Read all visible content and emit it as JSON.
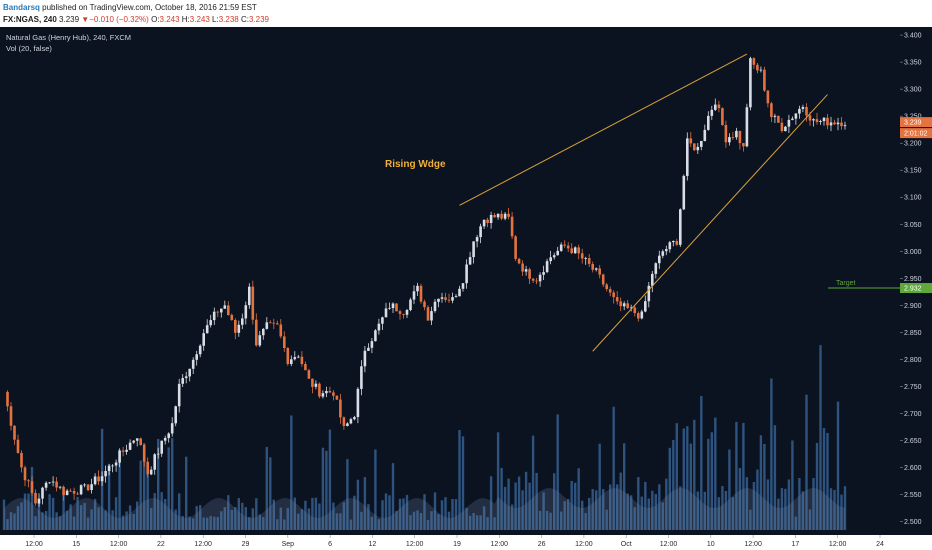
{
  "header": {
    "author": "Bandarsq",
    "published": "published on TradingView.com, October 18, 2016 21:59 EST",
    "symbol": "FX:NGAS, 240",
    "last": "3.239",
    "change": "−0.010 (−0.32%)",
    "o_label": "O:",
    "o_value": "3.243",
    "h_label": "H:",
    "h_value": "3.243",
    "l_label": "L:",
    "l_value": "3.238",
    "c_label": "C:",
    "c_value": "3.239"
  },
  "chart_data": {
    "type": "candlestick",
    "legend_title": "Natural Gas (Henry Hub), 240, FXCM",
    "legend_volume": "Vol (20, false)",
    "annotation_text": "Rising Wdge",
    "annotation_color": "#f2b13a",
    "target_label": "Target",
    "target_value": 2.932,
    "price_badge": "3.239",
    "countdown_badge": "2:01:02",
    "ylim": [
      2.475,
      3.415
    ],
    "y_ticks": [
      "3.400",
      "3.350",
      "3.300",
      "3.250",
      "3.200",
      "3.150",
      "3.100",
      "3.050",
      "3.000",
      "2.950",
      "2.900",
      "2.850",
      "2.800",
      "2.750",
      "2.700",
      "2.650",
      "2.600",
      "2.550",
      "2.500"
    ],
    "x_ticks": [
      "12:00",
      "15",
      "12:00",
      "22",
      "12:00",
      "29",
      "Sep",
      "6",
      "12",
      "12:00",
      "19",
      "12:00",
      "26",
      "12:00",
      "Oct",
      "12:00",
      "10",
      "12:00",
      "17",
      "12:00",
      "24"
    ],
    "x_range": [
      0,
      240
    ],
    "wedge_upper": [
      [
        130,
        3.085
      ],
      [
        212,
        3.365
      ]
    ],
    "wedge_lower": [
      [
        168,
        2.815
      ],
      [
        235,
        3.29
      ]
    ],
    "colors": {
      "up": "#d9dee6",
      "down": "#e4733f",
      "background": "#0b1220",
      "volume": "#3b6a9e",
      "wedge": "#d9a33a",
      "target": "#5ea83c"
    },
    "anchors": [
      [
        0,
        2.74
      ],
      [
        5,
        2.6
      ],
      [
        9,
        2.535
      ],
      [
        13,
        2.58
      ],
      [
        17,
        2.555
      ],
      [
        23,
        2.56
      ],
      [
        28,
        2.585
      ],
      [
        34,
        2.63
      ],
      [
        38,
        2.66
      ],
      [
        41,
        2.59
      ],
      [
        44,
        2.63
      ],
      [
        48,
        2.68
      ],
      [
        50,
        2.75
      ],
      [
        54,
        2.8
      ],
      [
        57,
        2.85
      ],
      [
        61,
        2.89
      ],
      [
        63,
        2.9
      ],
      [
        66,
        2.85
      ],
      [
        68,
        2.88
      ],
      [
        70,
        2.93
      ],
      [
        72,
        2.83
      ],
      [
        75,
        2.86
      ],
      [
        78,
        2.86
      ],
      [
        81,
        2.8
      ],
      [
        84,
        2.81
      ],
      [
        87,
        2.76
      ],
      [
        90,
        2.74
      ],
      [
        94,
        2.74
      ],
      [
        97,
        2.67
      ],
      [
        100,
        2.7
      ],
      [
        103,
        2.82
      ],
      [
        106,
        2.85
      ],
      [
        110,
        2.9
      ],
      [
        114,
        2.89
      ],
      [
        118,
        2.93
      ],
      [
        121,
        2.88
      ],
      [
        124,
        2.92
      ],
      [
        128,
        2.91
      ],
      [
        131,
        2.95
      ],
      [
        134,
        3.02
      ],
      [
        137,
        3.06
      ],
      [
        141,
        3.065
      ],
      [
        144,
        3.06
      ],
      [
        146,
        2.99
      ],
      [
        149,
        2.96
      ],
      [
        152,
        2.95
      ],
      [
        156,
        2.99
      ],
      [
        160,
        3.01
      ],
      [
        163,
        3.0
      ],
      [
        166,
        2.98
      ],
      [
        169,
        2.96
      ],
      [
        172,
        2.93
      ],
      [
        175,
        2.9
      ],
      [
        179,
        2.89
      ],
      [
        182,
        2.88
      ],
      [
        185,
        2.96
      ],
      [
        188,
        3.0
      ],
      [
        192,
        3.02
      ],
      [
        195,
        3.2
      ],
      [
        198,
        3.19
      ],
      [
        201,
        3.25
      ],
      [
        203,
        3.28
      ],
      [
        206,
        3.21
      ],
      [
        209,
        3.22
      ],
      [
        211,
        3.19
      ],
      [
        213,
        3.35
      ],
      [
        216,
        3.33
      ],
      [
        219,
        3.25
      ],
      [
        222,
        3.23
      ],
      [
        225,
        3.25
      ],
      [
        228,
        3.27
      ],
      [
        231,
        3.24
      ]
    ]
  }
}
